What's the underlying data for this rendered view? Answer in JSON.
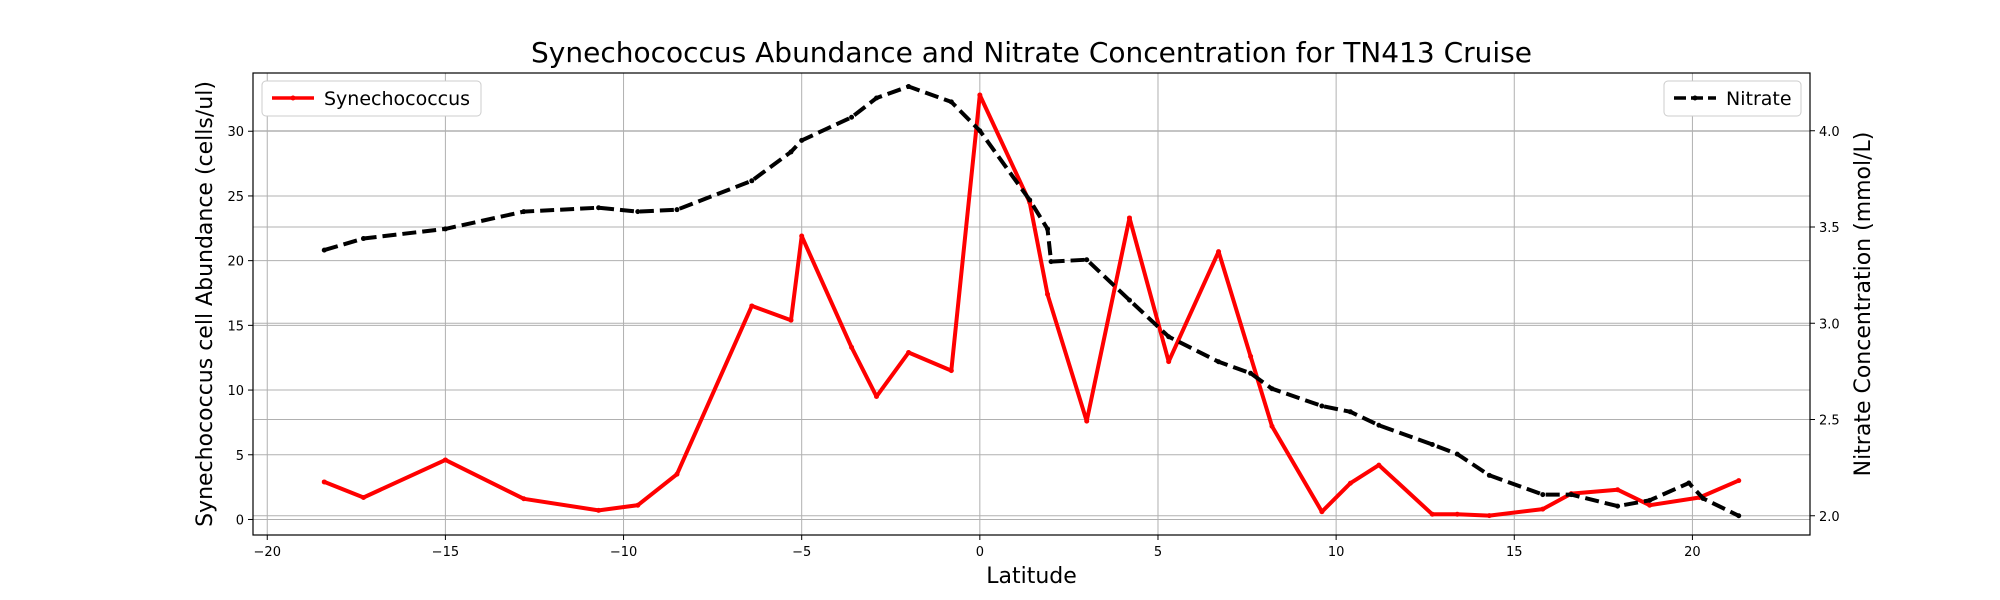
{
  "chart_data": {
    "type": "line",
    "title": "Synechococcus Abundance and Nitrate Concentration for TN413 Cruise",
    "xlabel": "Latitude",
    "ylabel_left": "Synechococcus cell Abundance (cells/ul)",
    "ylabel_right": "Nitrate Concentration (mmol/L)",
    "xlim": [
      -20.4,
      23.3
    ],
    "ylim_left": [
      -1.2,
      34.5
    ],
    "ylim_right": [
      1.9,
      4.3
    ],
    "x_ticks": [
      -20,
      -15,
      -10,
      -5,
      0,
      5,
      10,
      15,
      20
    ],
    "x_tick_labels": [
      "−20",
      "−15",
      "−10",
      "−5",
      "0",
      "5",
      "10",
      "15",
      "20"
    ],
    "y_left_ticks": [
      0,
      5,
      10,
      15,
      20,
      25,
      30
    ],
    "y_left_tick_labels": [
      "0",
      "5",
      "10",
      "15",
      "20",
      "25",
      "30"
    ],
    "y_right_ticks": [
      2.0,
      2.5,
      3.0,
      3.5,
      4.0
    ],
    "y_right_tick_labels": [
      "2.0",
      "2.5",
      "3.0",
      "3.5",
      "4.0"
    ],
    "grid": true,
    "series": [
      {
        "name": "Synechococcus",
        "axis": "left",
        "color": "#ff0000",
        "style": "solid",
        "legend_position": "upper-left",
        "points": [
          [
            -18.4,
            2.9
          ],
          [
            -17.3,
            1.7
          ],
          [
            -15.0,
            4.6
          ],
          [
            -12.8,
            1.6
          ],
          [
            -10.7,
            0.7
          ],
          [
            -9.6,
            1.1
          ],
          [
            -8.5,
            3.5
          ],
          [
            -6.4,
            16.5
          ],
          [
            -5.3,
            15.4
          ],
          [
            -5.0,
            21.9
          ],
          [
            -3.6,
            13.3
          ],
          [
            -2.9,
            9.5
          ],
          [
            -2.0,
            12.9
          ],
          [
            -0.8,
            11.5
          ],
          [
            0.0,
            32.8
          ],
          [
            1.4,
            24.5
          ],
          [
            1.9,
            17.4
          ],
          [
            3.0,
            7.6
          ],
          [
            4.2,
            23.3
          ],
          [
            5.3,
            12.2
          ],
          [
            6.7,
            20.7
          ],
          [
            7.6,
            12.6
          ],
          [
            8.2,
            7.2
          ],
          [
            9.6,
            0.6
          ],
          [
            10.4,
            2.8
          ],
          [
            11.2,
            4.2
          ],
          [
            12.7,
            0.4
          ],
          [
            13.4,
            0.4
          ],
          [
            14.3,
            0.3
          ],
          [
            15.8,
            0.8
          ],
          [
            16.6,
            2.0
          ],
          [
            17.9,
            2.3
          ],
          [
            18.8,
            1.1
          ],
          [
            20.2,
            1.7
          ],
          [
            21.3,
            3.0
          ]
        ]
      },
      {
        "name": "Nitrate",
        "axis": "right",
        "color": "#000000",
        "style": "dashed",
        "legend_position": "upper-right",
        "points": [
          [
            -18.4,
            3.38
          ],
          [
            -17.3,
            3.44
          ],
          [
            -15.0,
            3.49
          ],
          [
            -12.8,
            3.58
          ],
          [
            -10.7,
            3.6
          ],
          [
            -9.6,
            3.58
          ],
          [
            -8.5,
            3.59
          ],
          [
            -6.4,
            3.74
          ],
          [
            -5.3,
            3.89
          ],
          [
            -5.0,
            3.95
          ],
          [
            -3.6,
            4.07
          ],
          [
            -2.9,
            4.17
          ],
          [
            -2.0,
            4.23
          ],
          [
            -0.8,
            4.15
          ],
          [
            0.0,
            4.0
          ],
          [
            1.4,
            3.64
          ],
          [
            1.9,
            3.49
          ],
          [
            2.0,
            3.32
          ],
          [
            3.0,
            3.33
          ],
          [
            4.2,
            3.12
          ],
          [
            5.3,
            2.93
          ],
          [
            6.7,
            2.8
          ],
          [
            7.6,
            2.74
          ],
          [
            8.2,
            2.66
          ],
          [
            9.6,
            2.57
          ],
          [
            10.4,
            2.54
          ],
          [
            11.2,
            2.47
          ],
          [
            12.7,
            2.37
          ],
          [
            13.4,
            2.32
          ],
          [
            14.3,
            2.21
          ],
          [
            15.8,
            2.11
          ],
          [
            16.6,
            2.11
          ],
          [
            17.9,
            2.05
          ],
          [
            18.8,
            2.08
          ],
          [
            19.9,
            2.17
          ],
          [
            20.3,
            2.09
          ],
          [
            21.3,
            2.0
          ]
        ]
      }
    ]
  }
}
